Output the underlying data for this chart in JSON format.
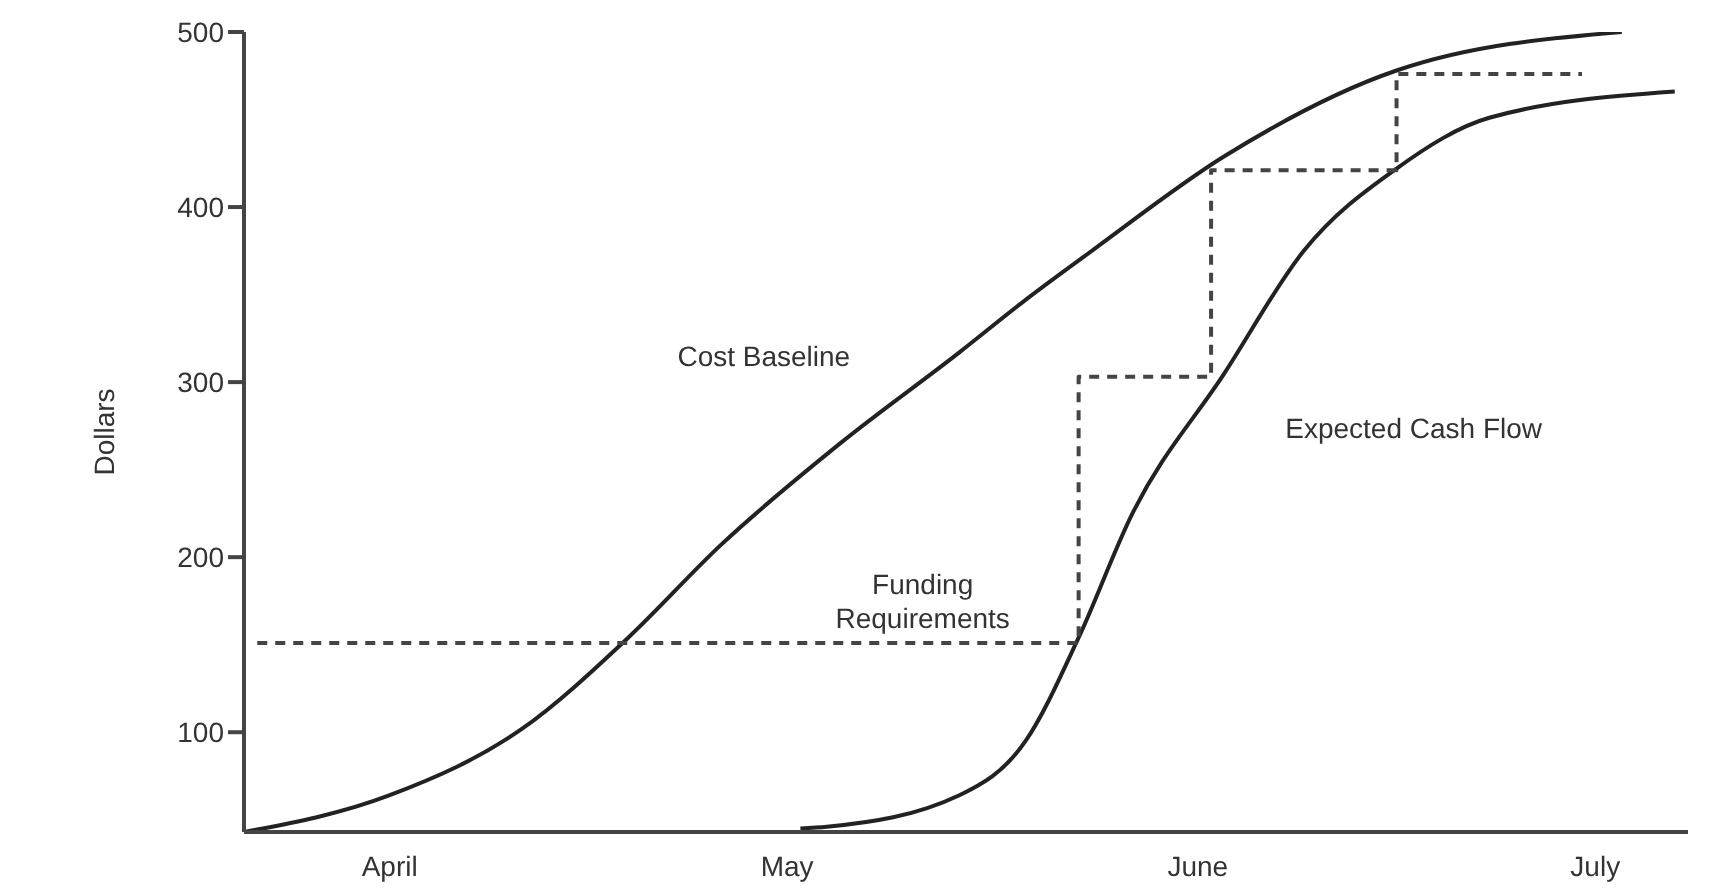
{
  "chart_data": {
    "type": "line",
    "ylabel": "Dollars",
    "xlim": [
      "--03-21",
      "--07-08"
    ],
    "xticks": [
      {
        "value": "--04-01",
        "label": "April"
      },
      {
        "value": "--05-01",
        "label": "May"
      },
      {
        "value": "--06-01",
        "label": "June"
      },
      {
        "value": "--07-01",
        "label": "July"
      }
    ],
    "ylim": [
      43,
      500
    ],
    "yticks": [
      100,
      200,
      300,
      400,
      500
    ],
    "grid": false,
    "legend": false,
    "marker": "none",
    "line_style": "solid",
    "series": [
      {
        "name": "Cost Baseline",
        "color": "#222222",
        "x": [
          "--03-21",
          "--04-01",
          "--04-11",
          "--04-19",
          "--04-26",
          "--05-05",
          "--05-14",
          "--05-19",
          "--05-24",
          "--06-03",
          "--06-16",
          "--07-03"
        ],
        "values": [
          43,
          64,
          102,
          154,
          207,
          265,
          317,
          347,
          375,
          429,
          478,
          500
        ]
      },
      {
        "name": "Expected Cash Flow",
        "color": "#222222",
        "x": [
          "--05-02",
          "--05-04",
          "--05-14",
          "--05-19",
          "--05-23",
          "--05-27",
          "--06-03",
          "--06-09",
          "--06-16",
          "--06-23",
          "--07-07"
        ],
        "values": [
          45,
          46,
          64,
          95,
          154,
          224,
          305,
          375,
          422,
          451,
          466
        ]
      },
      {
        "name": "Funding Requirements",
        "type": "step",
        "line_style": "dashed",
        "color": "#444444",
        "x": [
          "--03-22",
          "--05-23",
          "--06-02",
          "--06-16",
          "--06-30"
        ],
        "values": [
          151,
          303,
          421,
          476,
          476
        ]
      }
    ]
  }
}
